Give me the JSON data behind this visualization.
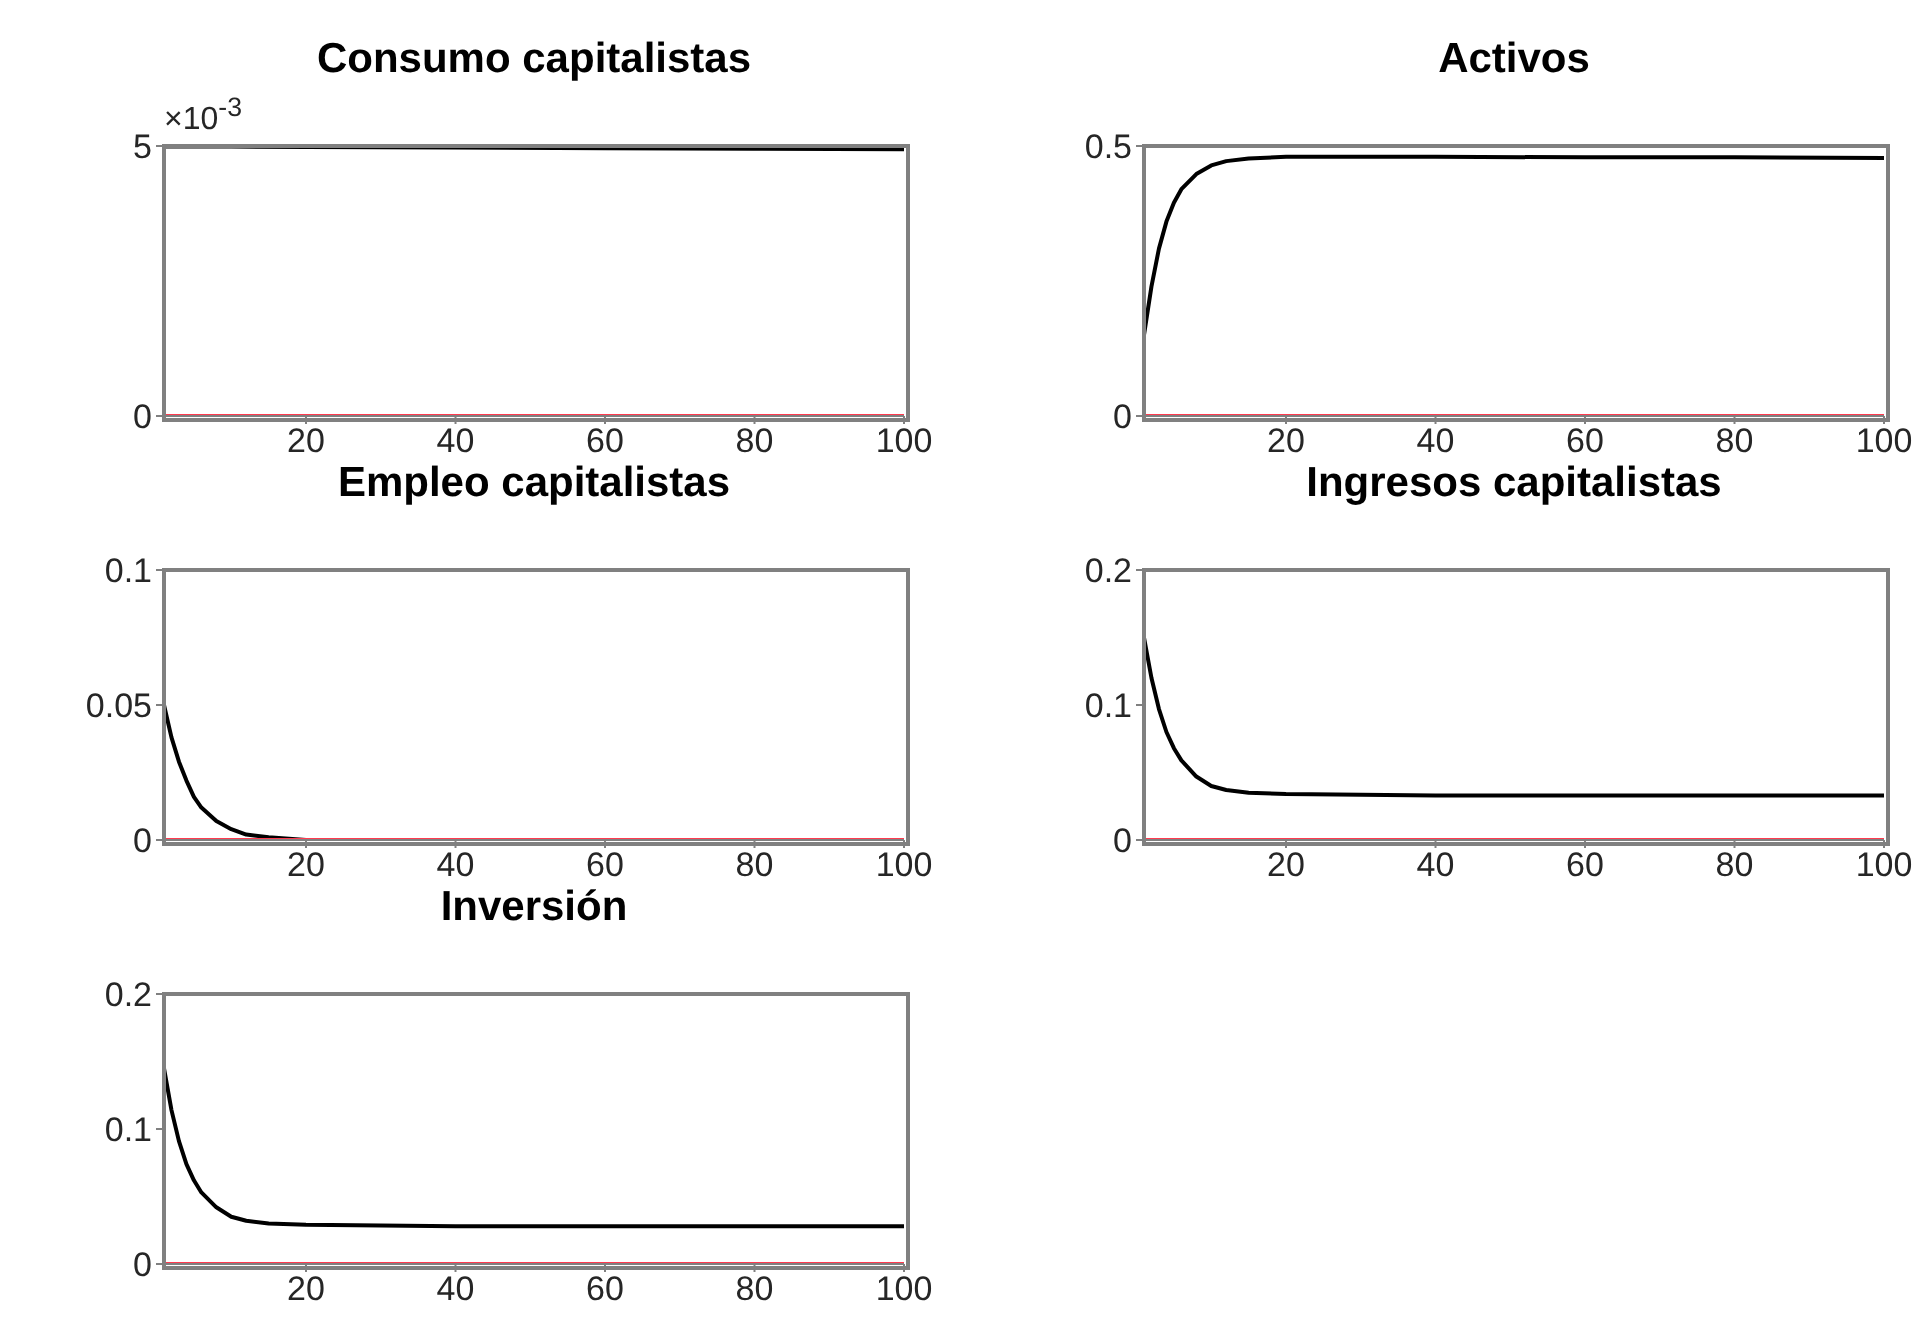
{
  "chart_data": [
    {
      "type": "line",
      "title": "Consumo capitalistas",
      "annotations": [
        "×10$^{-3}$"
      ],
      "xlim": [
        1,
        100
      ],
      "xticks": [
        20,
        40,
        60,
        80,
        100
      ],
      "ylim": [
        0,
        5
      ],
      "yticks": [
        0,
        5
      ],
      "series": [
        {
          "color": "#000000",
          "x": [
            1,
            10,
            20,
            40,
            60,
            80,
            100
          ],
          "values": [
            4.99,
            4.99,
            4.98,
            4.97,
            4.96,
            4.95,
            4.94
          ]
        },
        {
          "color": "#ff3a4f",
          "x": [
            1,
            100
          ],
          "values": [
            0,
            0
          ]
        }
      ]
    },
    {
      "type": "line",
      "title": "Activos",
      "xlim": [
        1,
        100
      ],
      "xticks": [
        20,
        40,
        60,
        80,
        100
      ],
      "ylim": [
        0,
        0.5
      ],
      "yticks": [
        0,
        0.5
      ],
      "series": [
        {
          "color": "#000000",
          "x": [
            1,
            2,
            3,
            4,
            5,
            6,
            8,
            10,
            12,
            15,
            20,
            40,
            60,
            80,
            100
          ],
          "values": [
            0.15,
            0.24,
            0.31,
            0.36,
            0.395,
            0.42,
            0.448,
            0.464,
            0.472,
            0.477,
            0.48,
            0.48,
            0.479,
            0.479,
            0.478
          ]
        },
        {
          "color": "#ff3a4f",
          "x": [
            1,
            100
          ],
          "values": [
            0,
            0
          ]
        }
      ]
    },
    {
      "type": "line",
      "title": "Empleo capitalistas",
      "xlim": [
        1,
        100
      ],
      "xticks": [
        20,
        40,
        60,
        80,
        100
      ],
      "ylim": [
        0,
        0.1
      ],
      "yticks": [
        0,
        0.05,
        0.1
      ],
      "series": [
        {
          "color": "#000000",
          "x": [
            1,
            2,
            3,
            4,
            5,
            6,
            8,
            10,
            12,
            15,
            20
          ],
          "values": [
            0.05,
            0.038,
            0.029,
            0.022,
            0.016,
            0.012,
            0.007,
            0.004,
            0.002,
            0.001,
            0
          ]
        },
        {
          "color": "#ff3a4f",
          "x": [
            1,
            100
          ],
          "values": [
            0,
            0
          ]
        }
      ]
    },
    {
      "type": "line",
      "title": "Ingresos capitalistas",
      "xlim": [
        1,
        100
      ],
      "xticks": [
        20,
        40,
        60,
        80,
        100
      ],
      "ylim": [
        0,
        0.2
      ],
      "yticks": [
        0,
        0.1,
        0.2
      ],
      "series": [
        {
          "color": "#000000",
          "x": [
            1,
            2,
            3,
            4,
            5,
            6,
            8,
            10,
            12,
            15,
            20,
            40,
            60,
            80,
            100
          ],
          "values": [
            0.15,
            0.12,
            0.097,
            0.08,
            0.068,
            0.059,
            0.047,
            0.04,
            0.037,
            0.035,
            0.034,
            0.033,
            0.033,
            0.033,
            0.033
          ]
        },
        {
          "color": "#ff3a4f",
          "x": [
            1,
            100
          ],
          "values": [
            0,
            0
          ]
        }
      ]
    },
    {
      "type": "line",
      "title": "Inversión",
      "xlim": [
        1,
        100
      ],
      "xticks": [
        20,
        40,
        60,
        80,
        100
      ],
      "ylim": [
        0,
        0.2
      ],
      "yticks": [
        0,
        0.1,
        0.2
      ],
      "series": [
        {
          "color": "#000000",
          "x": [
            1,
            2,
            3,
            4,
            5,
            6,
            8,
            10,
            12,
            15,
            20,
            40,
            60,
            80,
            100
          ],
          "values": [
            0.145,
            0.114,
            0.091,
            0.074,
            0.062,
            0.053,
            0.042,
            0.035,
            0.032,
            0.03,
            0.029,
            0.028,
            0.028,
            0.028,
            0.028
          ]
        },
        {
          "color": "#ff3a4f",
          "x": [
            1,
            100
          ],
          "values": [
            0,
            0
          ]
        }
      ]
    }
  ]
}
